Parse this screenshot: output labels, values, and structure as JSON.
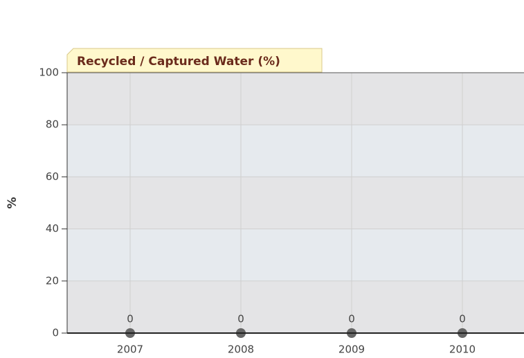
{
  "chart_data": {
    "type": "line",
    "title": "Recycled / Captured Water (%)",
    "y_label": "%",
    "categories": [
      "2007",
      "2008",
      "2009",
      "2010"
    ],
    "series": [
      {
        "name": "Recycled / Captured Water",
        "color": "#666666",
        "values": [
          0,
          0,
          0,
          0
        ]
      }
    ],
    "ylim": [
      0,
      100
    ],
    "yticks": [
      0,
      20,
      40,
      60,
      80,
      100
    ],
    "grid": true,
    "band_colors": [
      "#e4e4e6",
      "#e6eaee"
    ]
  }
}
